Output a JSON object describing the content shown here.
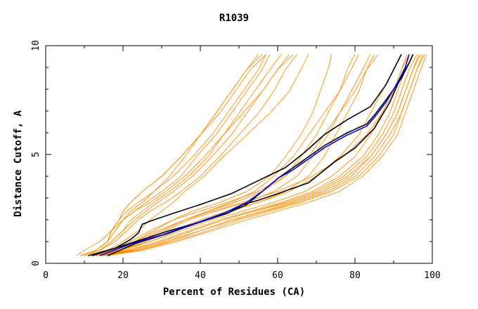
{
  "chart_data": {
    "type": "line",
    "title": "R1039",
    "xlabel": "Percent of Residues (CA)",
    "ylabel": "Distance Cutoff, A",
    "xlim": [
      0,
      100
    ],
    "ylim": [
      0,
      10
    ],
    "xticks": [
      0,
      20,
      40,
      60,
      80,
      100
    ],
    "xtick_labels": [
      "0",
      "20",
      "40",
      "60",
      "80",
      "100"
    ],
    "yticks": [
      0,
      5,
      10
    ],
    "ytick_labels": [
      "0",
      "5",
      "10"
    ],
    "grid": false,
    "legend": "none",
    "colors": {
      "group": "#ff8c00",
      "highlight_black": "#000000",
      "highlight_blue": "#0000ff",
      "axis": "#000000"
    },
    "series": [
      {
        "color": "#ff8c00",
        "x": [
          9,
          13,
          16,
          17,
          19,
          20,
          22,
          25,
          30,
          35,
          40,
          44,
          48,
          52,
          55
        ],
        "y": [
          0.35,
          0.6,
          1.0,
          1.5,
          2.0,
          2.4,
          2.8,
          3.3,
          4.0,
          4.9,
          5.9,
          6.9,
          7.9,
          8.9,
          9.6
        ]
      },
      {
        "color": "#ff8c00",
        "x": [
          9,
          13,
          16,
          17,
          19,
          20,
          22,
          25,
          30,
          35,
          40,
          44,
          48,
          52,
          56
        ],
        "y": [
          0.35,
          0.6,
          1.0,
          1.5,
          2.0,
          2.4,
          2.8,
          3.3,
          4.0,
          4.9,
          5.9,
          6.9,
          7.9,
          8.9,
          9.6
        ]
      },
      {
        "color": "#ff8c00",
        "x": [
          9,
          13,
          16,
          17,
          19,
          21,
          24,
          28,
          32,
          36,
          40,
          45,
          49,
          53,
          57
        ],
        "y": [
          0.35,
          0.6,
          1.0,
          1.5,
          2.0,
          2.4,
          2.8,
          3.3,
          4.0,
          4.9,
          5.9,
          6.9,
          7.9,
          8.9,
          9.6
        ]
      },
      {
        "color": "#ff8c00",
        "x": [
          9,
          13,
          16,
          18,
          20,
          23,
          26,
          30,
          35,
          39,
          44,
          48,
          52,
          56,
          58
        ],
        "y": [
          0.35,
          0.6,
          1.0,
          1.5,
          2.0,
          2.4,
          2.8,
          3.3,
          4.0,
          4.9,
          5.9,
          6.9,
          7.9,
          8.9,
          9.6
        ]
      },
      {
        "color": "#ff8c00",
        "x": [
          9,
          13,
          16,
          18,
          20,
          22,
          25,
          28,
          33,
          38,
          43,
          47,
          51,
          55,
          57
        ],
        "y": [
          0.35,
          0.6,
          1.0,
          1.5,
          2.0,
          2.4,
          2.8,
          3.3,
          4.0,
          4.9,
          5.9,
          6.9,
          7.9,
          8.9,
          9.6
        ]
      },
      {
        "color": "#ff8c00",
        "x": [
          10,
          14,
          17,
          20,
          22,
          25,
          28,
          32,
          37,
          42,
          46,
          50,
          54,
          58,
          61
        ],
        "y": [
          0.35,
          0.6,
          1.0,
          1.5,
          2.0,
          2.4,
          2.8,
          3.3,
          4.0,
          4.9,
          5.9,
          6.9,
          7.9,
          8.9,
          9.6
        ]
      },
      {
        "color": "#ff8c00",
        "x": [
          10,
          14,
          17,
          20,
          23,
          26,
          29,
          33,
          38,
          43,
          48,
          52,
          56,
          60,
          63
        ],
        "y": [
          0.35,
          0.6,
          1.0,
          1.5,
          2.0,
          2.4,
          2.8,
          3.3,
          4.0,
          4.9,
          5.9,
          6.9,
          7.9,
          8.9,
          9.6
        ]
      },
      {
        "color": "#ff8c00",
        "x": [
          10,
          14,
          18,
          21,
          24,
          27,
          31,
          35,
          40,
          45,
          50,
          55,
          59,
          62,
          65
        ],
        "y": [
          0.35,
          0.6,
          1.0,
          1.5,
          2.0,
          2.4,
          2.8,
          3.3,
          4.0,
          4.9,
          5.9,
          6.9,
          7.9,
          8.9,
          9.6
        ]
      },
      {
        "color": "#ff8c00",
        "x": [
          11,
          16,
          20,
          24,
          27,
          30,
          33,
          36,
          41,
          46,
          52,
          58,
          63,
          66,
          68
        ],
        "y": [
          0.35,
          0.6,
          1.0,
          1.5,
          2.0,
          2.4,
          2.8,
          3.3,
          4.0,
          4.9,
          5.9,
          6.9,
          7.9,
          8.9,
          9.6
        ]
      },
      {
        "color": "#ff8c00",
        "x": [
          12,
          18,
          23,
          28,
          33,
          38,
          45,
          52,
          58,
          62,
          66,
          69,
          71,
          73,
          74
        ],
        "y": [
          0.35,
          0.6,
          1.0,
          1.5,
          2.0,
          2.4,
          2.8,
          3.3,
          4.0,
          4.9,
          5.9,
          6.9,
          7.9,
          8.9,
          9.6
        ]
      },
      {
        "color": "#ff8c00",
        "x": [
          12,
          18,
          24,
          30,
          36,
          42,
          49,
          56,
          62,
          66,
          70,
          73,
          76,
          78,
          80
        ],
        "y": [
          0.35,
          0.6,
          1.0,
          1.5,
          2.0,
          2.4,
          2.8,
          3.3,
          4.0,
          4.9,
          5.9,
          6.9,
          7.9,
          8.9,
          9.6
        ]
      },
      {
        "color": "#ff8c00",
        "x": [
          13,
          19,
          25,
          31,
          37,
          44,
          52,
          59,
          65,
          69,
          73,
          76,
          79,
          82,
          84
        ],
        "y": [
          0.35,
          0.6,
          1.0,
          1.5,
          2.0,
          2.4,
          2.8,
          3.3,
          4.0,
          4.9,
          5.9,
          6.9,
          7.9,
          8.9,
          9.6
        ]
      },
      {
        "color": "#ff8c00",
        "x": [
          13,
          20,
          27,
          34,
          41,
          48,
          55,
          62,
          68,
          72,
          75,
          78,
          81,
          83,
          85
        ],
        "y": [
          0.35,
          0.6,
          1.0,
          1.5,
          2.0,
          2.4,
          2.8,
          3.3,
          4.0,
          4.9,
          5.9,
          6.9,
          7.9,
          8.9,
          9.6
        ]
      },
      {
        "color": "#ff8c00",
        "x": [
          12,
          18,
          24,
          30,
          36,
          42,
          48,
          54,
          59,
          64,
          68,
          72,
          76,
          79,
          81
        ],
        "y": [
          0.35,
          0.6,
          1.0,
          1.5,
          2.0,
          2.4,
          2.8,
          3.3,
          4.0,
          4.9,
          5.9,
          6.9,
          7.9,
          8.9,
          9.6
        ]
      },
      {
        "color": "#ff8c00",
        "x": [
          11,
          17,
          22,
          27,
          33,
          40,
          47,
          55,
          62,
          68,
          72,
          76,
          80,
          83,
          86
        ],
        "y": [
          0.35,
          0.6,
          1.0,
          1.5,
          2.0,
          2.4,
          2.8,
          3.3,
          4.0,
          4.9,
          5.9,
          6.9,
          7.9,
          8.9,
          9.6
        ]
      },
      {
        "color": "#ff8c00",
        "x": [
          12,
          19,
          26,
          33,
          40,
          47,
          55,
          63,
          70,
          76,
          81,
          84,
          87,
          90,
          92
        ],
        "y": [
          0.35,
          0.6,
          1.0,
          1.5,
          2.0,
          2.4,
          2.8,
          3.3,
          4.0,
          4.9,
          5.9,
          6.9,
          7.9,
          8.9,
          9.6
        ]
      },
      {
        "color": "#ff8c00",
        "x": [
          12,
          19,
          27,
          35,
          43,
          51,
          59,
          67,
          74,
          80,
          84,
          87,
          90,
          92,
          94
        ],
        "y": [
          0.35,
          0.6,
          1.0,
          1.5,
          2.0,
          2.4,
          2.8,
          3.3,
          4.0,
          4.9,
          5.9,
          6.9,
          7.9,
          8.9,
          9.6
        ]
      },
      {
        "color": "#ff8c00",
        "x": [
          13,
          21,
          29,
          37,
          45,
          53,
          61,
          69,
          76,
          82,
          86,
          89,
          91,
          93,
          95
        ],
        "y": [
          0.35,
          0.6,
          1.0,
          1.5,
          2.0,
          2.4,
          2.8,
          3.3,
          4.0,
          4.9,
          5.9,
          6.9,
          7.9,
          8.9,
          9.6
        ]
      },
      {
        "color": "#ff8c00",
        "x": [
          14,
          22,
          30,
          38,
          46,
          54,
          62,
          70,
          77,
          83,
          87,
          90,
          92,
          94,
          96
        ],
        "y": [
          0.35,
          0.6,
          1.0,
          1.5,
          2.0,
          2.4,
          2.8,
          3.3,
          4.0,
          4.9,
          5.9,
          6.9,
          7.9,
          8.9,
          9.6
        ]
      },
      {
        "color": "#ff8c00",
        "x": [
          14,
          23,
          31,
          40,
          48,
          56,
          64,
          72,
          79,
          84,
          88,
          91,
          93,
          95,
          97
        ],
        "y": [
          0.35,
          0.6,
          1.0,
          1.5,
          2.0,
          2.4,
          2.8,
          3.3,
          4.0,
          4.9,
          5.9,
          6.9,
          7.9,
          8.9,
          9.6
        ]
      },
      {
        "color": "#ff8c00",
        "x": [
          15,
          24,
          33,
          42,
          50,
          58,
          66,
          74,
          81,
          86,
          90,
          92,
          94,
          96,
          98
        ],
        "y": [
          0.35,
          0.6,
          1.0,
          1.5,
          2.0,
          2.4,
          2.8,
          3.3,
          4.0,
          4.9,
          5.9,
          6.9,
          7.9,
          8.9,
          9.6
        ]
      },
      {
        "color": "#ff8c00",
        "x": [
          16,
          25,
          34,
          43,
          52,
          60,
          68,
          76,
          82,
          87,
          91,
          93,
          95,
          97,
          98.5
        ],
        "y": [
          0.35,
          0.6,
          1.0,
          1.5,
          2.0,
          2.4,
          2.8,
          3.3,
          4.0,
          4.9,
          5.9,
          6.9,
          7.9,
          8.9,
          9.6
        ]
      },
      {
        "color": "#ff8c00",
        "x": [
          15,
          24,
          32,
          40,
          49,
          57,
          65,
          73,
          80,
          85,
          89,
          92,
          94,
          96,
          97.5
        ],
        "y": [
          0.35,
          0.6,
          1.0,
          1.5,
          2.0,
          2.4,
          2.8,
          3.3,
          4.0,
          4.9,
          5.9,
          6.9,
          7.9,
          8.9,
          9.6
        ]
      },
      {
        "color": "#ff8c00",
        "x": [
          13,
          22,
          30,
          38,
          46,
          54,
          63,
          71,
          78,
          84,
          88,
          91,
          93,
          95,
          96.5
        ],
        "y": [
          0.35,
          0.6,
          1.0,
          1.5,
          2.0,
          2.4,
          2.8,
          3.3,
          4.0,
          4.9,
          5.9,
          6.9,
          7.9,
          8.9,
          9.6
        ]
      },
      {
        "color": "#ff8c00",
        "x": [
          11,
          17,
          23,
          29,
          36,
          43,
          51,
          60,
          69,
          77,
          83,
          87,
          90,
          92,
          93.5
        ],
        "y": [
          0.35,
          0.6,
          1.0,
          1.5,
          2.0,
          2.4,
          2.8,
          3.3,
          4.0,
          4.9,
          5.9,
          6.9,
          7.9,
          8.9,
          9.6
        ]
      },
      {
        "color": "#ff8c00",
        "x": [
          8,
          10,
          14,
          17,
          20,
          23,
          27,
          31,
          36,
          41,
          46,
          51,
          56,
          60,
          64
        ],
        "y": [
          0.35,
          0.6,
          1.0,
          1.5,
          2.0,
          2.4,
          2.8,
          3.3,
          4.0,
          4.9,
          5.9,
          6.9,
          7.9,
          8.9,
          9.6
        ]
      },
      {
        "color": "#000000",
        "x": [
          12,
          18,
          22,
          24,
          25,
          28,
          33,
          40,
          48,
          55,
          62,
          67,
          72,
          78,
          84,
          88,
          92
        ],
        "y": [
          0.35,
          0.7,
          1.1,
          1.4,
          1.8,
          2.0,
          2.3,
          2.7,
          3.2,
          3.8,
          4.4,
          5.1,
          5.9,
          6.6,
          7.2,
          8.2,
          9.6
        ]
      },
      {
        "color": "#000000",
        "x": [
          11,
          18,
          25,
          32,
          40,
          47,
          51,
          55,
          60,
          68,
          75,
          80,
          85,
          89,
          92,
          94,
          95
        ],
        "y": [
          0.35,
          0.7,
          1.1,
          1.5,
          1.9,
          2.3,
          2.7,
          2.9,
          3.2,
          3.7,
          4.7,
          5.3,
          6.2,
          7.4,
          8.6,
          9.2,
          9.6
        ]
      },
      {
        "color": "#000000",
        "x": [
          16,
          23,
          32,
          40,
          47,
          52,
          56,
          60,
          64,
          68,
          72,
          78,
          83,
          85,
          88,
          92,
          94,
          95
        ],
        "y": [
          0.35,
          0.9,
          1.4,
          1.9,
          2.3,
          2.7,
          3.3,
          3.9,
          4.4,
          4.9,
          5.4,
          6.0,
          6.4,
          6.8,
          7.5,
          8.5,
          9.2,
          9.6
        ]
      },
      {
        "color": "#0000ff",
        "x": [
          14,
          22,
          30,
          38,
          46,
          52,
          56,
          60,
          64,
          68,
          72,
          78,
          83,
          85,
          88,
          91,
          93,
          94
        ],
        "y": [
          0.35,
          0.9,
          1.3,
          1.8,
          2.3,
          2.8,
          3.3,
          3.9,
          4.3,
          4.8,
          5.3,
          5.9,
          6.3,
          6.7,
          7.4,
          8.3,
          9.0,
          9.6
        ]
      }
    ]
  }
}
